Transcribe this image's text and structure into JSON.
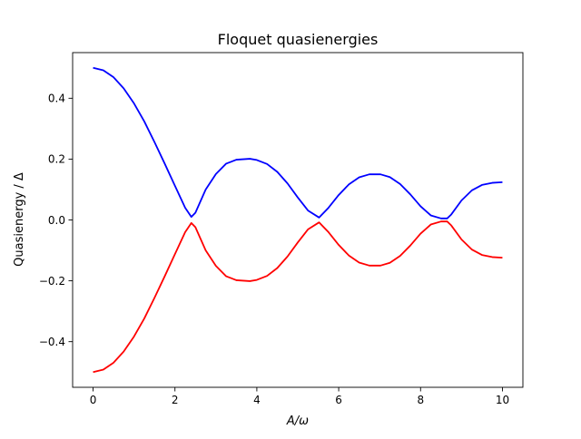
{
  "chart_data": {
    "type": "line",
    "title": "Floquet quasienergies",
    "xlabel": "A/ω",
    "ylabel": "Quasienergy / Δ",
    "xlim": [
      -0.5,
      10.5
    ],
    "ylim": [
      -0.55,
      0.55
    ],
    "xticks": [
      0,
      2,
      4,
      6,
      8,
      10
    ],
    "xtick_labels": [
      "0",
      "2",
      "4",
      "6",
      "8",
      "10"
    ],
    "yticks": [
      -0.4,
      -0.2,
      0.0,
      0.2,
      0.4
    ],
    "ytick_labels": [
      "−0.4",
      "−0.2",
      "0.0",
      "0.2",
      "0.4"
    ],
    "grid": false,
    "legend": "none",
    "x": [
      0.0,
      0.25,
      0.5,
      0.75,
      1.0,
      1.25,
      1.5,
      1.75,
      2.0,
      2.25,
      2.4,
      2.5,
      2.75,
      3.0,
      3.25,
      3.5,
      3.83,
      4.0,
      4.25,
      4.5,
      4.75,
      5.0,
      5.25,
      5.52,
      5.75,
      6.0,
      6.25,
      6.5,
      6.75,
      7.02,
      7.25,
      7.5,
      7.75,
      8.0,
      8.25,
      8.5,
      8.65,
      8.75,
      9.0,
      9.25,
      9.5,
      9.75,
      10.0
    ],
    "series": [
      {
        "color": "#0000ff",
        "values": [
          0.5,
          0.492,
          0.469,
          0.432,
          0.383,
          0.324,
          0.256,
          0.185,
          0.112,
          0.04,
          0.01,
          0.024,
          0.1,
          0.151,
          0.185,
          0.198,
          0.201,
          0.197,
          0.184,
          0.158,
          0.12,
          0.074,
          0.031,
          0.008,
          0.04,
          0.082,
          0.117,
          0.14,
          0.15,
          0.15,
          0.141,
          0.118,
          0.084,
          0.045,
          0.015,
          0.005,
          0.005,
          0.018,
          0.064,
          0.097,
          0.115,
          0.122,
          0.124
        ]
      },
      {
        "color": "#ff0000",
        "values": [
          -0.5,
          -0.492,
          -0.469,
          -0.432,
          -0.383,
          -0.324,
          -0.256,
          -0.185,
          -0.112,
          -0.04,
          -0.01,
          -0.024,
          -0.1,
          -0.151,
          -0.185,
          -0.198,
          -0.201,
          -0.197,
          -0.184,
          -0.158,
          -0.12,
          -0.074,
          -0.031,
          -0.008,
          -0.04,
          -0.082,
          -0.117,
          -0.14,
          -0.15,
          -0.15,
          -0.141,
          -0.118,
          -0.084,
          -0.045,
          -0.015,
          -0.005,
          -0.005,
          -0.018,
          -0.064,
          -0.097,
          -0.115,
          -0.122,
          -0.124
        ]
      }
    ]
  }
}
